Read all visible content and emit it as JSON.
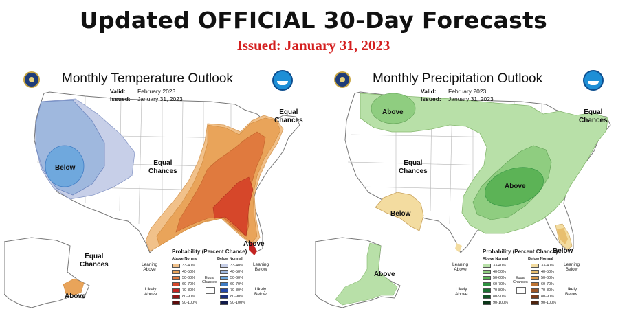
{
  "header": {
    "title": "Updated OFFICIAL 30-Day Forecasts",
    "issued": "Issued: January 31, 2023"
  },
  "colors": {
    "above_temp": [
      "#f1c18a",
      "#e9a45a",
      "#e07a3e",
      "#d6472a",
      "#c32421",
      "#8f1616",
      "#5c0b0b"
    ],
    "below_temp": [
      "#c7cfe8",
      "#9fb8de",
      "#6fa8dd",
      "#3f7cc4",
      "#2448a8",
      "#1b2f7a",
      "#111a4a"
    ],
    "above_precip": [
      "#b8e0a8",
      "#8fcd80",
      "#5cb356",
      "#2f9240",
      "#1d7233",
      "#135226",
      "#0a3517"
    ],
    "below_precip": [
      "#f3dca0",
      "#e8bf6f",
      "#d99a4a",
      "#bf7433",
      "#9c5526",
      "#7a3c1b",
      "#4e2510"
    ],
    "title_red": "#d41f1f"
  },
  "temperature": {
    "title": "Monthly Temperature Outlook",
    "valid_label": "Valid:",
    "valid_value": "February 2023",
    "issued_label": "Issued:",
    "issued_value": "January 31, 2023",
    "labels": {
      "below": "Below",
      "equal_center_1": "Equal",
      "equal_center_2": "Chances",
      "equal_ne_1": "Equal",
      "equal_ne_2": "Chances",
      "above_se": "Above",
      "equal_ak_1": "Equal",
      "equal_ak_2": "Chances",
      "above_ak": "Above"
    },
    "legend": {
      "title": "Probability (Percent Chance)",
      "left_sub": "Above Normal",
      "right_sub": "Below Normal",
      "lean_left_1": "Leaning",
      "lean_left_2": "Above",
      "lean_right_1": "Leaning",
      "lean_right_2": "Below",
      "likely_left_1": "Likely",
      "likely_left_2": "Above",
      "likely_right_1": "Likely",
      "likely_right_2": "Below",
      "mid_1": "Equal",
      "mid_2": "Chances",
      "ranges": [
        "33-40%",
        "40-50%",
        "50-60%",
        "60-70%",
        "70-80%",
        "80-90%",
        "90-100%"
      ]
    }
  },
  "precipitation": {
    "title": "Monthly Precipitation Outlook",
    "valid_label": "Valid:",
    "valid_value": "February 2023",
    "issued_label": "Issued:",
    "issued_value": "January 31, 2023",
    "labels": {
      "above_nw": "Above",
      "equal_center_1": "Equal",
      "equal_center_2": "Chances",
      "above_center": "Above",
      "below_sw": "Below",
      "equal_ne_1": "Equal",
      "equal_ne_2": "Chances",
      "below_fl": "Below",
      "above_ak": "Above"
    },
    "legend": {
      "title": "Probability (Percent Chance)",
      "left_sub": "Above Normal",
      "right_sub": "Below Normal",
      "lean_left_1": "Leaning",
      "lean_left_2": "Above",
      "lean_right_1": "Leaning",
      "lean_right_2": "Below",
      "likely_left_1": "Likely",
      "likely_left_2": "Above",
      "likely_right_1": "Likely",
      "likely_right_2": "Below",
      "mid_1": "Equal",
      "mid_2": "Chances",
      "ranges": [
        "33-40%",
        "40-50%",
        "50-60%",
        "60-70%",
        "70-80%",
        "80-90%",
        "90-100%"
      ]
    }
  }
}
